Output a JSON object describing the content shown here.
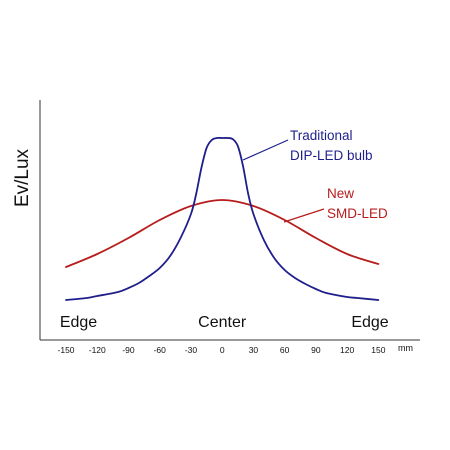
{
  "chart_data": {
    "type": "line",
    "ylabel": "Ev/Lux",
    "x_unit": "mm",
    "xlim": [
      -175,
      190
    ],
    "ylim": [
      0,
      100
    ],
    "grid": false,
    "x_ticks": [
      -150,
      -120,
      -90,
      -60,
      -30,
      0,
      30,
      60,
      90,
      120,
      150
    ],
    "position_labels": [
      {
        "text": "Edge",
        "x": -138
      },
      {
        "text": "Center",
        "x": 0
      },
      {
        "text": "Edge",
        "x": 142
      }
    ],
    "series": [
      {
        "name": "Traditional DIP-LED bulb",
        "name_lines": [
          "Traditional",
          "DIP-LED bulb"
        ],
        "color": "#1f1f8c",
        "x": [
          -150,
          -130,
          -120,
          -100,
          -90,
          -80,
          -70,
          -60,
          -50,
          -40,
          -30,
          -25,
          -20,
          -15,
          -10,
          -5,
          0,
          5,
          10,
          15,
          20,
          25,
          30,
          40,
          50,
          60,
          70,
          80,
          90,
          100,
          120,
          130,
          150
        ],
        "y": [
          5,
          6,
          7,
          9,
          11,
          13.5,
          17,
          21,
          27,
          36,
          48,
          58,
          71,
          81,
          85,
          86,
          86,
          86,
          85.5,
          82,
          72,
          58,
          48,
          35,
          26,
          20,
          16,
          13,
          10.5,
          8.5,
          6.5,
          6,
          5
        ]
      },
      {
        "name": "New SMD-LED",
        "name_lines": [
          "New",
          "SMD-LED"
        ],
        "color": "#b71c1c",
        "x": [
          -150,
          -120,
          -90,
          -60,
          -30,
          0,
          30,
          60,
          90,
          120,
          150
        ],
        "y": [
          21.5,
          28,
          36,
          45,
          52,
          55,
          52,
          45,
          36,
          28,
          23
        ]
      }
    ]
  }
}
